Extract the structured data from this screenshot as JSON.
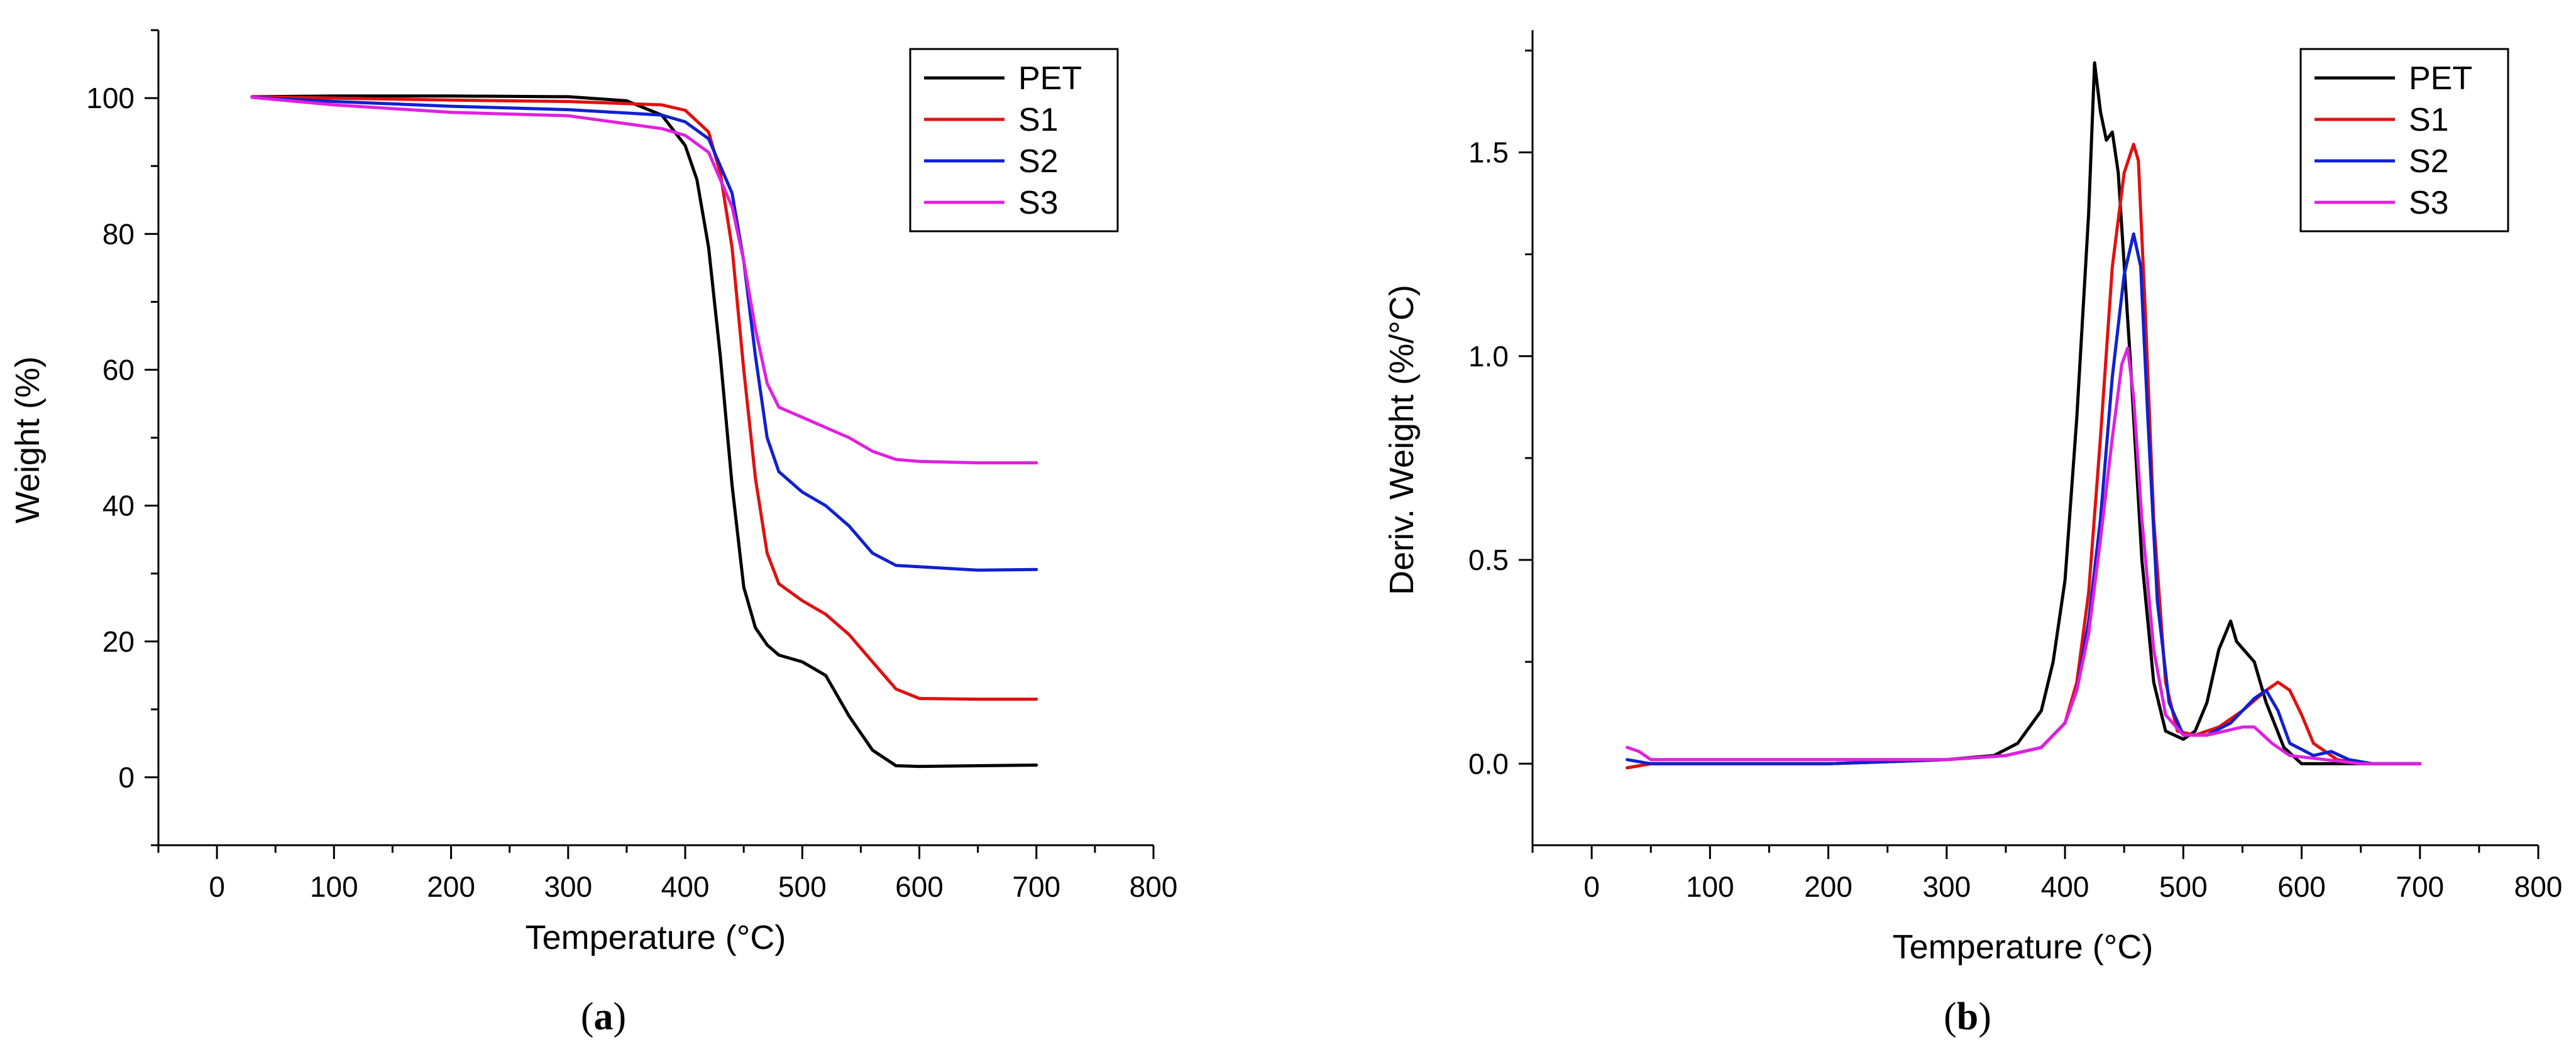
{
  "chart_data": [
    {
      "panel": "a",
      "type": "line",
      "title": "",
      "panel_label": "a",
      "xlabel": "Temperature (°C)",
      "ylabel": "Weight (%)",
      "xlim": [
        -50,
        800
      ],
      "ylim": [
        -10,
        110
      ],
      "xticks": [
        0,
        100,
        200,
        300,
        400,
        500,
        600,
        700,
        800
      ],
      "yticks": [
        0,
        20,
        40,
        60,
        80,
        100
      ],
      "legend_position": "top-right",
      "series": [
        {
          "name": "PET",
          "color": "#000000",
          "points": [
            [
              30,
              100.2
            ],
            [
              100,
              100.3
            ],
            [
              200,
              100.3
            ],
            [
              300,
              100.2
            ],
            [
              350,
              99.6
            ],
            [
              380,
              97.5
            ],
            [
              400,
              93
            ],
            [
              410,
              88
            ],
            [
              420,
              78
            ],
            [
              430,
              62
            ],
            [
              440,
              43
            ],
            [
              450,
              28
            ],
            [
              460,
              22
            ],
            [
              470,
              19.5
            ],
            [
              480,
              18
            ],
            [
              500,
              17
            ],
            [
              520,
              15
            ],
            [
              540,
              9
            ],
            [
              560,
              4
            ],
            [
              580,
              1.7
            ],
            [
              600,
              1.6
            ],
            [
              650,
              1.7
            ],
            [
              700,
              1.8
            ]
          ]
        },
        {
          "name": "S1",
          "color": "#e01010",
          "points": [
            [
              30,
              100.2
            ],
            [
              100,
              100
            ],
            [
              200,
              99.7
            ],
            [
              300,
              99.5
            ],
            [
              380,
              99
            ],
            [
              400,
              98.2
            ],
            [
              420,
              95
            ],
            [
              430,
              89
            ],
            [
              440,
              78
            ],
            [
              450,
              60
            ],
            [
              460,
              44
            ],
            [
              470,
              33
            ],
            [
              480,
              28.5
            ],
            [
              500,
              26
            ],
            [
              520,
              24
            ],
            [
              540,
              21
            ],
            [
              560,
              17
            ],
            [
              580,
              13
            ],
            [
              600,
              11.6
            ],
            [
              650,
              11.5
            ],
            [
              700,
              11.5
            ]
          ]
        },
        {
          "name": "S2",
          "color": "#1020d0",
          "points": [
            [
              30,
              100.1
            ],
            [
              100,
              99.5
            ],
            [
              200,
              98.8
            ],
            [
              300,
              98.3
            ],
            [
              380,
              97.5
            ],
            [
              400,
              96.5
            ],
            [
              420,
              94
            ],
            [
              440,
              86
            ],
            [
              450,
              76
            ],
            [
              460,
              62
            ],
            [
              470,
              50
            ],
            [
              480,
              45
            ],
            [
              500,
              42
            ],
            [
              520,
              40
            ],
            [
              540,
              37
            ],
            [
              560,
              33
            ],
            [
              580,
              31.2
            ],
            [
              600,
              31
            ],
            [
              650,
              30.5
            ],
            [
              700,
              30.6
            ]
          ]
        },
        {
          "name": "S3",
          "color": "#e020e0",
          "points": [
            [
              30,
              100.1
            ],
            [
              100,
              99
            ],
            [
              200,
              97.9
            ],
            [
              300,
              97.4
            ],
            [
              380,
              95.5
            ],
            [
              400,
              94.5
            ],
            [
              420,
              92
            ],
            [
              440,
              84
            ],
            [
              450,
              76
            ],
            [
              460,
              66
            ],
            [
              470,
              58
            ],
            [
              480,
              54.5
            ],
            [
              500,
              53
            ],
            [
              520,
              51.5
            ],
            [
              540,
              50
            ],
            [
              560,
              48
            ],
            [
              580,
              46.8
            ],
            [
              600,
              46.5
            ],
            [
              650,
              46.3
            ],
            [
              700,
              46.3
            ]
          ]
        }
      ]
    },
    {
      "panel": "b",
      "type": "line",
      "title": "",
      "panel_label": "b",
      "xlabel": "Temperature (°C)",
      "ylabel": "Deriv. Weight (%/°C)",
      "xlim": [
        -50,
        800
      ],
      "ylim": [
        -0.2,
        1.8
      ],
      "xticks": [
        0,
        100,
        200,
        300,
        400,
        500,
        600,
        700,
        800
      ],
      "yticks": [
        0.0,
        0.5,
        1.0,
        1.5
      ],
      "legend_position": "top-right",
      "series": [
        {
          "name": "PET",
          "color": "#000000",
          "points": [
            [
              30,
              -0.01
            ],
            [
              50,
              0.0
            ],
            [
              100,
              0.0
            ],
            [
              200,
              0.0
            ],
            [
              300,
              0.01
            ],
            [
              340,
              0.02
            ],
            [
              360,
              0.05
            ],
            [
              370,
              0.09
            ],
            [
              380,
              0.13
            ],
            [
              390,
              0.25
            ],
            [
              400,
              0.45
            ],
            [
              410,
              0.85
            ],
            [
              420,
              1.35
            ],
            [
              425,
              1.72
            ],
            [
              430,
              1.6
            ],
            [
              435,
              1.53
            ],
            [
              440,
              1.55
            ],
            [
              445,
              1.45
            ],
            [
              455,
              1.0
            ],
            [
              465,
              0.5
            ],
            [
              475,
              0.2
            ],
            [
              485,
              0.08
            ],
            [
              500,
              0.06
            ],
            [
              510,
              0.08
            ],
            [
              520,
              0.15
            ],
            [
              530,
              0.28
            ],
            [
              540,
              0.35
            ],
            [
              545,
              0.3
            ],
            [
              560,
              0.25
            ],
            [
              570,
              0.15
            ],
            [
              585,
              0.04
            ],
            [
              600,
              0.0
            ],
            [
              650,
              0.0
            ],
            [
              700,
              0.0
            ]
          ]
        },
        {
          "name": "S1",
          "color": "#e01010",
          "points": [
            [
              30,
              -0.01
            ],
            [
              50,
              0.0
            ],
            [
              100,
              0.0
            ],
            [
              200,
              0.0
            ],
            [
              300,
              0.01
            ],
            [
              350,
              0.02
            ],
            [
              380,
              0.04
            ],
            [
              400,
              0.1
            ],
            [
              410,
              0.2
            ],
            [
              420,
              0.42
            ],
            [
              430,
              0.8
            ],
            [
              440,
              1.22
            ],
            [
              450,
              1.45
            ],
            [
              458,
              1.52
            ],
            [
              462,
              1.48
            ],
            [
              468,
              1.1
            ],
            [
              475,
              0.6
            ],
            [
              485,
              0.2
            ],
            [
              495,
              0.08
            ],
            [
              510,
              0.07
            ],
            [
              530,
              0.09
            ],
            [
              550,
              0.13
            ],
            [
              570,
              0.18
            ],
            [
              580,
              0.2
            ],
            [
              590,
              0.18
            ],
            [
              600,
              0.12
            ],
            [
              610,
              0.05
            ],
            [
              630,
              0.01
            ],
            [
              650,
              0.0
            ],
            [
              700,
              0.0
            ]
          ]
        },
        {
          "name": "S2",
          "color": "#1020d0",
          "points": [
            [
              30,
              0.01
            ],
            [
              50,
              0.0
            ],
            [
              100,
              0.0
            ],
            [
              200,
              0.0
            ],
            [
              300,
              0.01
            ],
            [
              350,
              0.02
            ],
            [
              380,
              0.04
            ],
            [
              400,
              0.1
            ],
            [
              410,
              0.18
            ],
            [
              420,
              0.35
            ],
            [
              430,
              0.6
            ],
            [
              440,
              0.95
            ],
            [
              450,
              1.2
            ],
            [
              458,
              1.3
            ],
            [
              464,
              1.22
            ],
            [
              470,
              0.85
            ],
            [
              478,
              0.4
            ],
            [
              488,
              0.15
            ],
            [
              500,
              0.07
            ],
            [
              520,
              0.07
            ],
            [
              540,
              0.1
            ],
            [
              560,
              0.16
            ],
            [
              570,
              0.18
            ],
            [
              580,
              0.13
            ],
            [
              590,
              0.05
            ],
            [
              610,
              0.02
            ],
            [
              625,
              0.03
            ],
            [
              640,
              0.01
            ],
            [
              660,
              0.0
            ],
            [
              700,
              0.0
            ]
          ]
        },
        {
          "name": "S3",
          "color": "#e020e0",
          "points": [
            [
              30,
              0.04
            ],
            [
              40,
              0.03
            ],
            [
              50,
              0.01
            ],
            [
              100,
              0.01
            ],
            [
              200,
              0.01
            ],
            [
              300,
              0.01
            ],
            [
              350,
              0.02
            ],
            [
              380,
              0.04
            ],
            [
              400,
              0.1
            ],
            [
              410,
              0.18
            ],
            [
              420,
              0.32
            ],
            [
              430,
              0.55
            ],
            [
              440,
              0.8
            ],
            [
              448,
              0.98
            ],
            [
              453,
              1.02
            ],
            [
              458,
              0.9
            ],
            [
              465,
              0.6
            ],
            [
              475,
              0.28
            ],
            [
              485,
              0.12
            ],
            [
              500,
              0.07
            ],
            [
              520,
              0.07
            ],
            [
              535,
              0.08
            ],
            [
              550,
              0.09
            ],
            [
              560,
              0.09
            ],
            [
              575,
              0.05
            ],
            [
              590,
              0.02
            ],
            [
              620,
              0.01
            ],
            [
              650,
              0.0
            ],
            [
              700,
              0.0
            ]
          ]
        }
      ]
    }
  ]
}
